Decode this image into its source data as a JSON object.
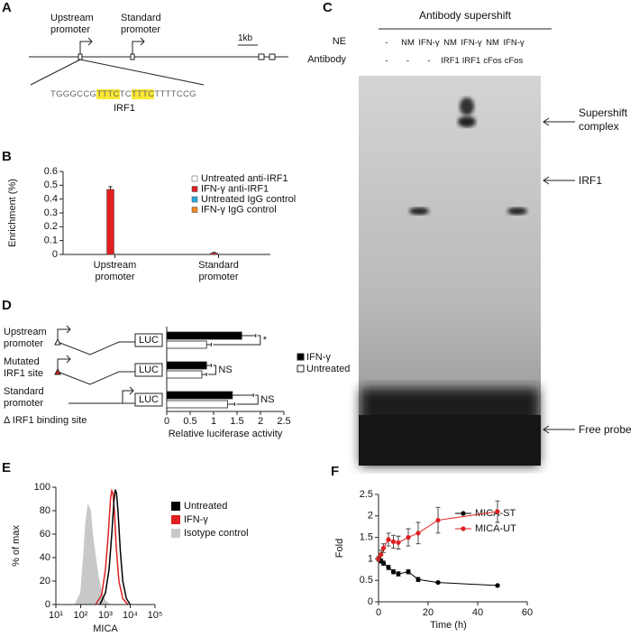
{
  "panel_a": {
    "panel": "A",
    "upstream": "Upstream promoter",
    "standard": "Standard promoter",
    "scale": "1kb",
    "sequence": [
      {
        "text": "TGGGCCG",
        "highlight": false
      },
      {
        "text": "TTTC",
        "highlight": true
      },
      {
        "text": "TC",
        "highlight": false
      },
      {
        "text": "TTTC",
        "highlight": true
      },
      {
        "text": "TTTTCCG",
        "highlight": false
      }
    ],
    "highlight_color": "#fbe834",
    "motif": "IRF1"
  },
  "panel_c": {
    "panel": "C",
    "title": "Antibody supershift",
    "rows": [
      {
        "label": "NE",
        "cells": [
          "-",
          "NM",
          "IFN-γ",
          "NM",
          "IFN-γ",
          "NM",
          "IFN-γ"
        ]
      },
      {
        "label": "Antibody",
        "cells": [
          "-",
          "-",
          "-",
          "IRF1",
          "IRF1",
          "cFos",
          "cFos"
        ]
      }
    ],
    "annotations": [
      "Supershift complex",
      "IRF1",
      "Free probe"
    ]
  },
  "chart_data": [
    {
      "type": "bar",
      "panel": "B",
      "ylabel": "Enrichment (%)",
      "categories": [
        "Upstream promoter",
        "Standard promoter"
      ],
      "series": [
        {
          "name": "Untreated anti-IRF1",
          "color": "#ffffff",
          "values": [
            0,
            0
          ],
          "errors": [
            0,
            0
          ]
        },
        {
          "name": "IFN-γ anti-IRF1",
          "color": "#e02020",
          "values": [
            0.47,
            0.01
          ],
          "errors": [
            0.02,
            0.005
          ]
        },
        {
          "name": "Untreated IgG control",
          "color": "#29a8e0",
          "values": [
            0,
            0
          ],
          "errors": [
            0,
            0
          ]
        },
        {
          "name": "IFN-γ IgG control",
          "color": "#f08a24",
          "values": [
            0,
            0
          ],
          "errors": [
            0,
            0
          ]
        }
      ],
      "ylim": [
        0,
        0.6
      ],
      "yticks": [
        0,
        0.1,
        0.2,
        0.3,
        0.4,
        0.5,
        0.6
      ]
    },
    {
      "type": "hbar",
      "panel": "D",
      "xlabel": "Relative luciferase activity",
      "categories": [
        "Upstream promoter",
        "Mutated IRF1 site",
        "Standard promoter"
      ],
      "series": [
        {
          "name": "IFN-γ",
          "color": "#000000",
          "values": [
            1.6,
            0.85,
            1.4
          ],
          "errors": [
            0.3,
            0.1,
            0.45
          ]
        },
        {
          "name": "Untreated",
          "color": "#ffffff",
          "values": [
            0.85,
            0.75,
            1.3
          ],
          "errors": [
            0.1,
            0.1,
            0.15
          ]
        }
      ],
      "significance": [
        "*",
        "NS",
        "NS"
      ],
      "box_label": "LUC",
      "note": "Δ IRF1 binding site",
      "xlim": [
        0,
        2.5
      ],
      "xticks": [
        0,
        0.5,
        1,
        1.5,
        2,
        2.5
      ]
    },
    {
      "type": "line",
      "panel": "E",
      "xlabel": "MICA",
      "ylabel": "% of max",
      "xscale": "log",
      "series": [
        {
          "name": "Untreated",
          "color": "#000000",
          "fill": false,
          "x": [
            600,
            1000,
            1400,
            1800,
            2200,
            2500,
            2800,
            3200,
            4000,
            5000,
            7000,
            10000
          ],
          "values": [
            0,
            10,
            30,
            60,
            88,
            98,
            95,
            80,
            45,
            20,
            5,
            0
          ]
        },
        {
          "name": "IFN-γ",
          "color": "#e02020",
          "fill": false,
          "x": [
            400,
            700,
            1000,
            1300,
            1600,
            1800,
            2000,
            2300,
            2700,
            3500,
            5000,
            8000
          ],
          "values": [
            0,
            8,
            30,
            60,
            90,
            97,
            95,
            80,
            50,
            20,
            5,
            0
          ]
        },
        {
          "name": "Isotype control",
          "color": "#c8c8c8",
          "fill": true,
          "x": [
            60,
            100,
            130,
            160,
            200,
            250,
            300,
            400,
            500,
            700,
            1000,
            1500
          ],
          "values": [
            0,
            10,
            40,
            70,
            85,
            80,
            60,
            40,
            25,
            10,
            3,
            0
          ]
        }
      ],
      "xlim": [
        10,
        100000
      ],
      "xticks": [
        {
          "value": 10,
          "label": "10¹"
        },
        {
          "value": 100,
          "label": "10²"
        },
        {
          "value": 1000,
          "label": "10³"
        },
        {
          "value": 10000,
          "label": "10⁴"
        },
        {
          "value": 100000,
          "label": "10⁵"
        }
      ],
      "ylim": [
        0,
        100
      ],
      "yticks": [
        0,
        20,
        40,
        60,
        80,
        100
      ]
    },
    {
      "type": "errorline",
      "panel": "F",
      "xlabel": "Time (h)",
      "ylabel": "Fold",
      "series": [
        {
          "name": "MICA-ST",
          "color": "#000000",
          "x": [
            0,
            1,
            2,
            4,
            6,
            8,
            12,
            16,
            24,
            48
          ],
          "values": [
            1,
            0.95,
            0.9,
            0.8,
            0.7,
            0.65,
            0.7,
            0.52,
            0.45,
            0.38
          ],
          "errors": [
            0.05,
            0.05,
            0.05,
            0.05,
            0.05,
            0.05,
            0.05,
            0.05,
            0.02,
            0.02
          ]
        },
        {
          "name": "MICA-UT",
          "color": "#e02020",
          "x": [
            0,
            1,
            2,
            4,
            6,
            8,
            12,
            16,
            24,
            48
          ],
          "values": [
            1,
            1.1,
            1.25,
            1.45,
            1.4,
            1.38,
            1.5,
            1.6,
            1.9,
            2.1
          ],
          "errors": [
            0.05,
            0.1,
            0.1,
            0.15,
            0.15,
            0.15,
            0.2,
            0.25,
            0.3,
            0.25
          ]
        }
      ],
      "xlim": [
        0,
        60
      ],
      "xticks": [
        0,
        20,
        40,
        60
      ],
      "ylim": [
        0,
        2.5
      ],
      "yticks": [
        0,
        0.5,
        1,
        1.5,
        2,
        2.5
      ]
    }
  ]
}
